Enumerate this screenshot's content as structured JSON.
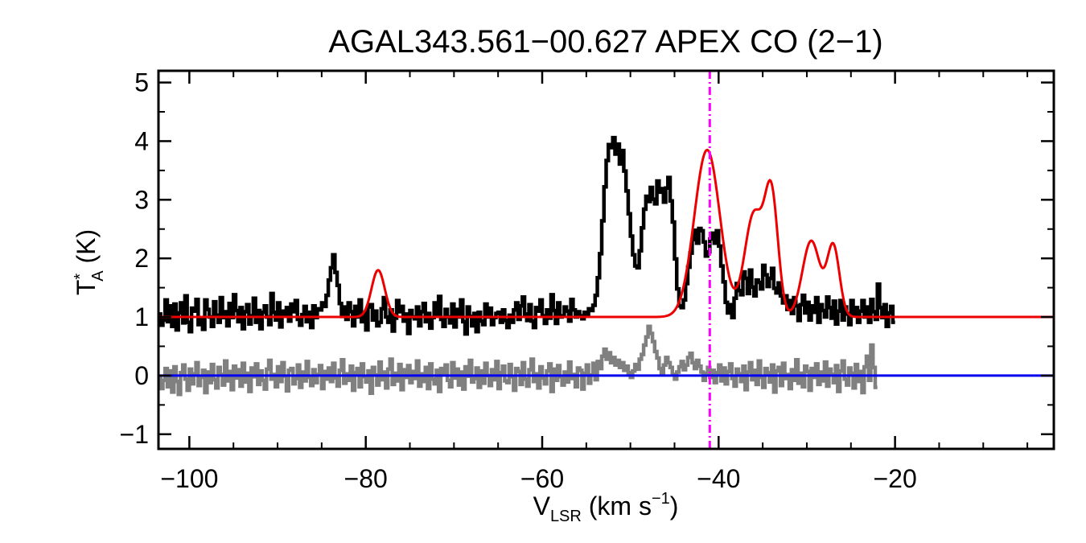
{
  "chart_data": {
    "type": "line",
    "title": "AGAL343.561−00.627  APEX CO (2−1)",
    "xlabel": {
      "main": "V",
      "sub": "LSR",
      "rest": " (km s",
      "sup": "−1",
      "end": ")"
    },
    "ylabel": {
      "main": "T",
      "sup": "*",
      "sub": "A",
      "rest": " (K)"
    },
    "xlim": [
      -103.5,
      -2.0
    ],
    "ylim": [
      -1.25,
      5.2
    ],
    "x_ticks": [
      -100,
      -80,
      -60,
      -40,
      -20
    ],
    "x_tick_labels": [
      "−100",
      "−80",
      "−60",
      "−40",
      "−20"
    ],
    "y_ticks": [
      -1,
      0,
      1,
      2,
      3,
      4,
      5
    ],
    "y_tick_labels": [
      "−1",
      "0",
      "1",
      "2",
      "3",
      "4",
      "5"
    ],
    "grid": false,
    "colors": {
      "spectrum": "#000000",
      "fit": "#ee0000",
      "residual": "#808080",
      "zero_line": "#0000ee",
      "velocity_marker": "#ff00ff"
    },
    "vlsr_marker": -41.0,
    "zero_level": 0.0,
    "fit": {
      "baseline": 1.0,
      "components": [
        {
          "center": -78.6,
          "amplitude": 0.8,
          "sigma": 0.75
        },
        {
          "center": -41.3,
          "amplitude": 2.85,
          "sigma": 1.45
        },
        {
          "center": -36.0,
          "amplitude": 1.75,
          "sigma": 1.05
        },
        {
          "center": -34.0,
          "amplitude": 2.0,
          "sigma": 0.75
        },
        {
          "center": -29.5,
          "amplitude": 1.3,
          "sigma": 1.0
        },
        {
          "center": -27.0,
          "amplitude": 1.2,
          "sigma": 0.7
        }
      ]
    },
    "series": [
      {
        "role": "spectrum",
        "x_start": -103.5,
        "x_step": 0.25,
        "y": [
          1.05,
          0.86,
          0.95,
          1.29,
          0.92,
          1.19,
          0.84,
          1.22,
          0.78,
          1.07,
          1.24,
          0.9,
          1.36,
          0.91,
          0.75,
          1.15,
          1.1,
          1.3,
          0.87,
          0.96,
          0.79,
          1.29,
          1.13,
          1.0,
          0.84,
          1.26,
          1.03,
          0.91,
          1.33,
          0.99,
          1.09,
          0.85,
          1.23,
          0.99,
          1.38,
          1.11,
          0.92,
          1.16,
          0.8,
          1.09,
          1.21,
          0.88,
          1.02,
          1.32,
          0.91,
          1.11,
          0.8,
          1.08,
          1.19,
          1.0,
          0.87,
          1.4,
          1.08,
          0.95,
          1.24,
          0.83,
          1.1,
          1.02,
          1.16,
          0.93,
          1.22,
          1.09,
          1.28,
          0.96,
          0.86,
          1.04,
          1.18,
          0.92,
          1.08,
          0.82,
          1.19,
          0.99,
          1.14,
          1.12,
          1.24,
          1.18,
          1.37,
          1.63,
          1.84,
          2.06,
          1.76,
          1.54,
          1.23,
          1.01,
          1.17,
          0.96,
          1.24,
          1.09,
          0.85,
          1.18,
          1.0,
          1.29,
          0.92,
          1.07,
          0.78,
          1.17,
          1.21,
          0.95,
          1.1,
          0.85,
          0.91,
          1.14,
          1.33,
          1.0,
          0.91,
          1.12,
          0.76,
          0.98,
          1.28,
          1.09,
          1.18,
          0.93,
          1.05,
          0.72,
          1.11,
          1.0,
          0.97,
          1.17,
          0.85,
          1.09,
          1.23,
          0.92,
          1.06,
          0.81,
          0.99,
          1.24,
          1.04,
          1.35,
          0.96,
          0.84,
          1.13,
          1.0,
          0.9,
          1.22,
          0.83,
          1.13,
          1.0,
          1.29,
          0.92,
          0.71,
          1.17,
          1.01,
          0.85,
          1.06,
          0.75,
          1.08,
          0.93,
          0.87,
          1.22,
          1.0,
          1.15,
          0.87,
          0.99,
          1.06,
          1.08,
          0.91,
          1.12,
          0.94,
          0.82,
          1.03,
          0.91,
          1.12,
          1.24,
          0.96,
          1.19,
          1.34,
          1.05,
          0.94,
          1.21,
          0.93,
          0.82,
          1.16,
          1.1,
          1.29,
          1.02,
          0.89,
          1.12,
          0.98,
          1.38,
          1.11,
          0.89,
          1.24,
          1.0,
          1.02,
          1.17,
          1.1,
          0.93,
          1.3,
          1.12,
          1.0,
          1.09,
          1.02,
          0.97,
          1.08,
          1.05,
          1.14,
          1.11,
          1.2,
          1.37,
          1.67,
          2.08,
          2.64,
          3.22,
          3.67,
          3.94,
          3.89,
          4.06,
          3.78,
          3.95,
          3.61,
          3.84,
          3.49,
          3.15,
          2.76,
          2.38,
          2.06,
          1.87,
          1.84,
          2.13,
          2.52,
          2.84,
          3.06,
          2.97,
          3.21,
          3.01,
          2.93,
          3.32,
          3.13,
          3.19,
          2.96,
          3.2,
          3.38,
          2.98,
          2.62,
          1.99,
          1.48,
          1.19,
          1.16,
          1.29,
          1.57,
          1.85,
          2.09,
          2.32,
          2.48,
          2.26,
          2.51,
          2.47,
          2.28,
          2.04,
          2.11,
          2.33,
          2.43,
          2.26,
          2.47,
          2.21,
          1.87,
          1.6,
          1.25,
          1.07,
          1.21,
          0.99,
          1.32,
          1.57,
          1.45,
          1.38,
          1.77,
          1.66,
          1.4,
          1.8,
          1.51,
          1.36,
          1.63,
          1.59,
          1.48,
          1.88,
          1.72,
          1.52,
          1.66,
          1.83,
          1.49,
          1.41,
          1.58,
          1.36,
          1.24,
          1.36,
          1.13,
          1.28,
          1.06,
          1.33,
          1.19,
          0.94,
          1.21,
          1.37,
          1.07,
          1.25,
          0.95,
          1.19,
          1.08,
          1.33,
          0.91,
          1.21,
          1.11,
          1.0,
          1.34,
          1.16,
          0.98,
          1.27,
          0.88,
          1.1,
          1.28,
          0.95,
          1.17,
          1.05,
          0.87,
          1.28,
          1.03,
          1.16,
          0.91,
          1.1,
          1.28,
          1.0,
          1.17,
          0.91,
          1.3,
          1.09,
          0.96,
          1.56,
          1.16,
          0.99,
          1.21,
          0.84,
          1.07,
          1.18,
          0.91
        ]
      },
      {
        "role": "residual",
        "x_start": -103.5,
        "x_step": 0.25,
        "y": [
          -0.05,
          -0.22,
          -0.08,
          0.12,
          -0.19,
          0.08,
          -0.28,
          0.15,
          -0.1,
          -0.32,
          0.05,
          0.18,
          -0.06,
          -0.25,
          0.11,
          -0.14,
          0.03,
          0.22,
          -0.17,
          -0.03,
          0.09,
          -0.29,
          0.06,
          -0.12,
          0.19,
          -0.07,
          -0.21,
          0.14,
          0.02,
          -0.16,
          0.25,
          -0.09,
          0.07,
          -0.24,
          0.16,
          -0.04,
          0.1,
          -0.18,
          0.21,
          -0.11,
          0.04,
          -0.27,
          0.13,
          -0.02,
          0.2,
          -0.15,
          0.08,
          -0.08,
          -0.23,
          0.11,
          0.26,
          -0.06,
          0.02,
          -0.19,
          0.15,
          -0.1,
          0.22,
          -0.01,
          -0.26,
          0.09,
          0.12,
          -0.14,
          -0.05,
          0.18,
          -0.2,
          0.06,
          -0.09,
          0.24,
          -0.03,
          -0.17,
          0.1,
          -0.12,
          0.02,
          0.17,
          -0.22,
          0.07,
          -0.06,
          0.13,
          -0.1,
          0.21,
          -0.04,
          -0.18,
          0.09,
          0.27,
          -0.13,
          0.03,
          -0.08,
          0.16,
          -0.25,
          0.05,
          0.12,
          -0.19,
          0.2,
          -0.02,
          -0.11,
          0.08,
          -0.3,
          0.14,
          0.01,
          -0.16,
          0.23,
          -0.07,
          0.06,
          -0.21,
          0.11,
          0.28,
          -0.15,
          0.04,
          -0.09,
          0.19,
          -0.24,
          0.1,
          -0.03,
          0.17,
          -0.12,
          0.07,
          -0.05,
          0.25,
          -0.18,
          0.03,
          -0.1,
          0.14,
          -0.22,
          0.2,
          -0.06,
          -0.14,
          0.09,
          -0.27,
          0.12,
          0.02,
          0.18,
          -0.08,
          -0.19,
          0.22,
          -0.04,
          0.11,
          -0.16,
          0.06,
          -0.23,
          0.15,
          -0.01,
          0.26,
          -0.11,
          -0.05,
          0.13,
          -0.2,
          0.08,
          -0.13,
          0.21,
          0.0,
          -0.17,
          0.1,
          -0.07,
          0.24,
          -0.22,
          0.05,
          0.16,
          -0.09,
          -0.12,
          0.19,
          -0.02,
          -0.25,
          0.12,
          0.07,
          -0.15,
          0.22,
          -0.06,
          -0.18,
          0.1,
          0.28,
          -0.1,
          0.03,
          -0.21,
          0.15,
          -0.04,
          -0.14,
          0.08,
          0.2,
          -0.27,
          0.11,
          -0.08,
          0.17,
          -0.02,
          -0.16,
          0.06,
          -0.11,
          0.23,
          -0.05,
          0.02,
          -0.19,
          0.13,
          0.09,
          -0.23,
          0.04,
          0.18,
          -0.13,
          0.01,
          0.21,
          -0.07,
          0.24,
          0.12,
          0.33,
          0.45,
          0.28,
          0.39,
          0.22,
          0.31,
          0.18,
          0.26,
          0.14,
          0.22,
          0.09,
          0.16,
          0.05,
          -0.03,
          0.08,
          0.19,
          0.11,
          0.28,
          0.36,
          0.52,
          0.66,
          0.84,
          0.72,
          0.58,
          0.41,
          0.3,
          0.12,
          0.05,
          0.18,
          0.31,
          0.22,
          0.14,
          0.02,
          -0.06,
          0.06,
          0.15,
          0.24,
          0.1,
          0.18,
          0.31,
          0.38,
          0.22,
          0.12,
          0.26,
          0.16,
          0.06,
          -0.08,
          0.04,
          0.14,
          -0.03,
          0.09,
          -0.12,
          0.05,
          0.18,
          -0.09,
          0.13,
          -0.14,
          0.07,
          0.2,
          -0.05,
          -0.18,
          0.11,
          0.03,
          -0.1,
          0.16,
          -0.24,
          0.06,
          0.22,
          -0.07,
          0.09,
          -0.15,
          0.25,
          -0.03,
          -0.2,
          0.12,
          0.05,
          -0.11,
          0.18,
          -0.28,
          0.08,
          0.14,
          -0.17,
          0.21,
          -0.05,
          0.02,
          -0.22,
          0.1,
          -0.08,
          0.27,
          -0.13,
          0.04,
          -0.19,
          0.16,
          0.07,
          -0.25,
          0.12,
          -0.03,
          0.2,
          -0.15,
          0.06,
          -0.09,
          0.23,
          -0.18,
          0.11,
          0.02,
          -0.12,
          0.17,
          -0.27,
          0.08,
          0.25,
          -0.06,
          -0.16,
          0.13,
          0.04,
          -0.21,
          0.19,
          -0.1,
          0.07,
          -0.29,
          0.15,
          0.33,
          -0.08,
          0.52,
          0.14,
          -0.2
        ]
      }
    ]
  }
}
